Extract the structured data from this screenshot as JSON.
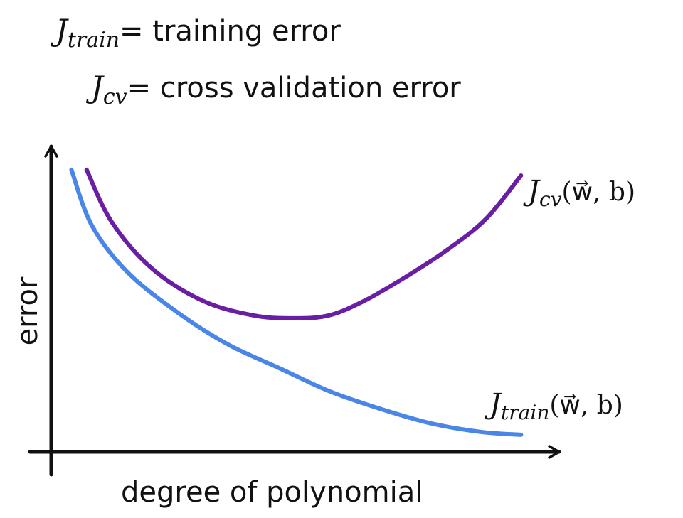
{
  "legend": {
    "train": {
      "symbol": "J",
      "subscript": "train",
      "text": "= training error"
    },
    "cv": {
      "symbol": "J",
      "subscript": "cv",
      "text": "= cross validation error"
    }
  },
  "chart_data": {
    "type": "line",
    "xlabel": "degree of polynomial",
    "ylabel": "error",
    "grid": false,
    "series": [
      {
        "name": "J_train",
        "label": {
          "symbol": "J",
          "subscript": "train",
          "args": "(w⃗, b)"
        },
        "color": "#4a86e8",
        "x": [
          0.04,
          0.08,
          0.15,
          0.25,
          0.35,
          0.45,
          0.55,
          0.65,
          0.75,
          0.85,
          0.93
        ],
        "y": [
          0.92,
          0.73,
          0.57,
          0.43,
          0.32,
          0.24,
          0.16,
          0.1,
          0.05,
          0.02,
          0.01
        ]
      },
      {
        "name": "J_cv",
        "label": {
          "symbol": "J",
          "subscript": "cv",
          "args": "(w⃗, b)"
        },
        "color": "#6a1fa3",
        "x": [
          0.07,
          0.12,
          0.2,
          0.3,
          0.4,
          0.48,
          0.55,
          0.62,
          0.7,
          0.78,
          0.86,
          0.93
        ],
        "y": [
          0.92,
          0.74,
          0.58,
          0.47,
          0.42,
          0.41,
          0.42,
          0.47,
          0.55,
          0.64,
          0.75,
          0.9
        ]
      }
    ]
  }
}
